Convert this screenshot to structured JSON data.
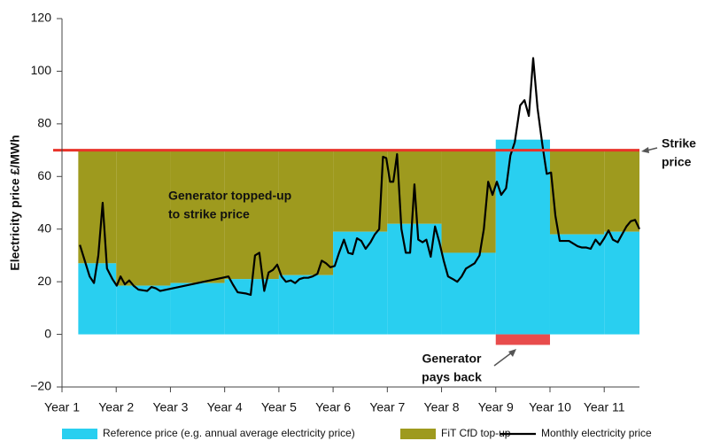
{
  "chart_data": {
    "type": "step",
    "y_label": "Electricity price £/MWh",
    "xlim": [
      1,
      11.65
    ],
    "xticks": [
      {
        "value": 1,
        "label": "Year 1"
      },
      {
        "value": 2,
        "label": "Year 2"
      },
      {
        "value": 3,
        "label": "Year 3"
      },
      {
        "value": 4,
        "label": "Year 4"
      },
      {
        "value": 5,
        "label": "Year 5"
      },
      {
        "value": 6,
        "label": "Year 6"
      },
      {
        "value": 7,
        "label": "Year 7"
      },
      {
        "value": 8,
        "label": "Year 8"
      },
      {
        "value": 9,
        "label": "Year 9"
      },
      {
        "value": 10,
        "label": "Year 10"
      },
      {
        "value": 11,
        "label": "Year 11"
      }
    ],
    "ylim": [
      -20,
      120
    ],
    "yticks": [
      {
        "value": -20,
        "label": "−20"
      },
      0,
      20,
      40,
      60,
      80,
      100,
      120
    ],
    "strike_price": 70,
    "strike_color": "#e8332a",
    "payback_color": "#e84c4c",
    "annotations": [
      {
        "lines": [
          "Generator topped-up",
          "to strike price"
        ]
      },
      {
        "lines": [
          "Strike",
          "price"
        ]
      },
      {
        "lines": [
          "Generator",
          "pays back"
        ]
      }
    ],
    "series": [
      {
        "name": "Reference price (e.g. annual average electricity price)",
        "color": "#29cff0",
        "bins": [
          1.3,
          2,
          3,
          4,
          5,
          6,
          7,
          8,
          9,
          10,
          11,
          11.65
        ],
        "values": [
          27,
          18.5,
          19.5,
          21,
          22.5,
          39,
          42,
          31,
          74,
          38,
          39
        ]
      },
      {
        "name": "FiT CfD top-up",
        "color": "#9e9a1e"
      },
      {
        "name": "Monthly electricity price",
        "color": "#000000",
        "x": [
          1.33,
          1.42,
          1.51,
          1.59,
          1.67,
          1.75,
          1.83,
          1.93,
          2.01,
          2.08,
          2.16,
          2.24,
          2.32,
          2.41,
          2.57,
          2.65,
          2.73,
          2.81,
          4.07,
          4.15,
          4.24,
          4.4,
          4.48,
          4.56,
          4.64,
          4.73,
          4.81,
          4.89,
          4.97,
          5.05,
          5.13,
          5.22,
          5.3,
          5.38,
          5.46,
          5.54,
          5.62,
          5.71,
          5.79,
          5.87,
          5.95,
          6.03,
          6.11,
          6.2,
          6.28,
          6.36,
          6.44,
          6.52,
          6.6,
          6.69,
          6.77,
          6.85,
          6.92,
          6.98,
          7.05,
          7.11,
          7.18,
          7.26,
          7.34,
          7.42,
          7.5,
          7.57,
          7.65,
          7.72,
          7.8,
          7.88,
          7.96,
          8.04,
          8.12,
          8.21,
          8.29,
          8.37,
          8.45,
          8.53,
          8.61,
          8.7,
          8.78,
          8.86,
          8.94,
          9.02,
          9.1,
          9.19,
          9.27,
          9.35,
          9.45,
          9.53,
          9.61,
          9.69,
          9.77,
          9.86,
          9.94,
          10.02,
          10.1,
          10.18,
          10.26,
          10.35,
          10.43,
          10.51,
          10.59,
          10.67,
          10.75,
          10.84,
          10.92,
          11.0,
          11.08,
          11.16,
          11.25,
          11.33,
          11.41,
          11.49,
          11.57,
          11.65
        ],
        "values": [
          34,
          28,
          22,
          19.5,
          30,
          50,
          25,
          21,
          18.5,
          22,
          19,
          20.5,
          18.5,
          17,
          16.5,
          18,
          17.5,
          16.5,
          22,
          19,
          16,
          15.5,
          15,
          30,
          31,
          16.5,
          23.5,
          24.5,
          26.5,
          22,
          20,
          20.5,
          19.5,
          21,
          21.5,
          21.5,
          22,
          23,
          28,
          27,
          25.5,
          26,
          31,
          36,
          31,
          30.5,
          36.5,
          35.5,
          32.5,
          35,
          38,
          40,
          67.5,
          67,
          58,
          58,
          68.5,
          40,
          31,
          31,
          57,
          36,
          35,
          36,
          29.5,
          41,
          35,
          28,
          22,
          21,
          20,
          22,
          25,
          26,
          27,
          30,
          40,
          58,
          53,
          58,
          53,
          55.5,
          68,
          73,
          87,
          89,
          83,
          105,
          86,
          72,
          61,
          61.5,
          45,
          35.5,
          35.5,
          35.5,
          34.5,
          33.5,
          33,
          33,
          32.5,
          36,
          34,
          36.5,
          39.5,
          36,
          35,
          38,
          41,
          43,
          43.5,
          40
        ]
      }
    ]
  }
}
